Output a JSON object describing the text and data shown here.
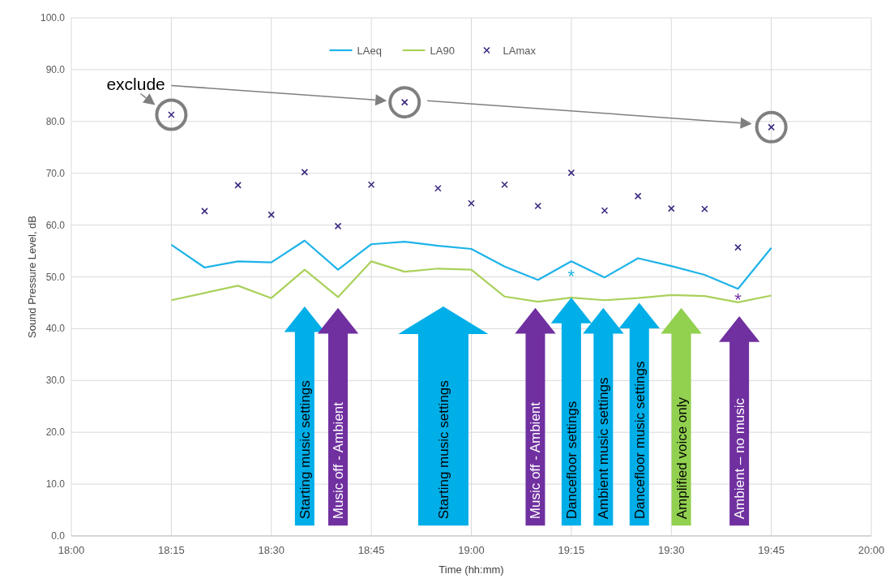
{
  "chart_data": {
    "type": "line",
    "xlabel": "Time (hh:mm)",
    "ylabel": "Sound Pressure Level, dB",
    "x": [
      18.25,
      18.3333,
      18.4167,
      18.5,
      18.5833,
      18.6667,
      18.75,
      18.8333,
      18.9167,
      19,
      19.0833,
      19.1667,
      19.25,
      19.3333,
      19.4167,
      19.5,
      19.5833,
      19.6667,
      19.75
    ],
    "series": [
      {
        "name": "LAeq",
        "color": "#1eb3e8",
        "values": [
          56.2,
          51.8,
          53.0,
          52.8,
          57.0,
          51.4,
          56.3,
          56.8,
          56.0,
          55.4,
          52.0,
          49.4,
          53.0,
          49.9,
          53.6,
          52.1,
          50.4,
          47.7,
          55.6
        ]
      },
      {
        "name": "LA90",
        "color": "#a9d15a",
        "values": [
          45.5,
          46.9,
          48.3,
          45.9,
          51.4,
          46.1,
          53.0,
          51.0,
          51.6,
          51.4,
          46.2,
          45.2,
          46.0,
          45.5,
          45.9,
          46.5,
          46.3,
          45.1,
          46.4
        ]
      },
      {
        "name": "LAmax",
        "type": "scatter",
        "marker": "cross",
        "color": "#3d2a80",
        "values": [
          81.3,
          62.7,
          67.7,
          62.0,
          70.2,
          59.8,
          67.8,
          83.7,
          67.1,
          64.2,
          67.8,
          63.7,
          70.1,
          62.8,
          65.6,
          63.2,
          63.1,
          55.7,
          78.9
        ]
      }
    ],
    "xlim": [
      18,
      20
    ],
    "xticks": [
      {
        "value": 18,
        "label": "18:00"
      },
      {
        "value": 18.25,
        "label": "18:15"
      },
      {
        "value": 18.5,
        "label": "18:30"
      },
      {
        "value": 18.75,
        "label": "18:45"
      },
      {
        "value": 19,
        "label": "19:00"
      },
      {
        "value": 19.25,
        "label": "19:15"
      },
      {
        "value": 19.5,
        "label": "19:30"
      },
      {
        "value": 19.75,
        "label": "19:45"
      },
      {
        "value": 20,
        "label": "20:00"
      }
    ],
    "ylim": [
      0,
      100
    ],
    "yticks": [
      {
        "value": 0,
        "label": "0.0"
      },
      {
        "value": 10,
        "label": "10.0"
      },
      {
        "value": 20,
        "label": "20.0"
      },
      {
        "value": 30,
        "label": "30.0"
      },
      {
        "value": 40,
        "label": "40.0"
      },
      {
        "value": 50,
        "label": "50.0"
      },
      {
        "value": 60,
        "label": "60.0"
      },
      {
        "value": 70,
        "label": "70.0"
      },
      {
        "value": 80,
        "label": "80.0"
      },
      {
        "value": 90,
        "label": "90.0"
      },
      {
        "value": 100,
        "label": "100.0"
      }
    ],
    "grid": true,
    "legend": "top",
    "annotations": [
      "exclude",
      "Starting music settings",
      "Music off - Ambient",
      "Starting music settings",
      "Music off - Ambient",
      "Dancefloor settings",
      "Ambient music settings",
      "Dancefloor music settings",
      "Amplified voice only",
      "Ambient – no music",
      "*",
      "*"
    ]
  }
}
